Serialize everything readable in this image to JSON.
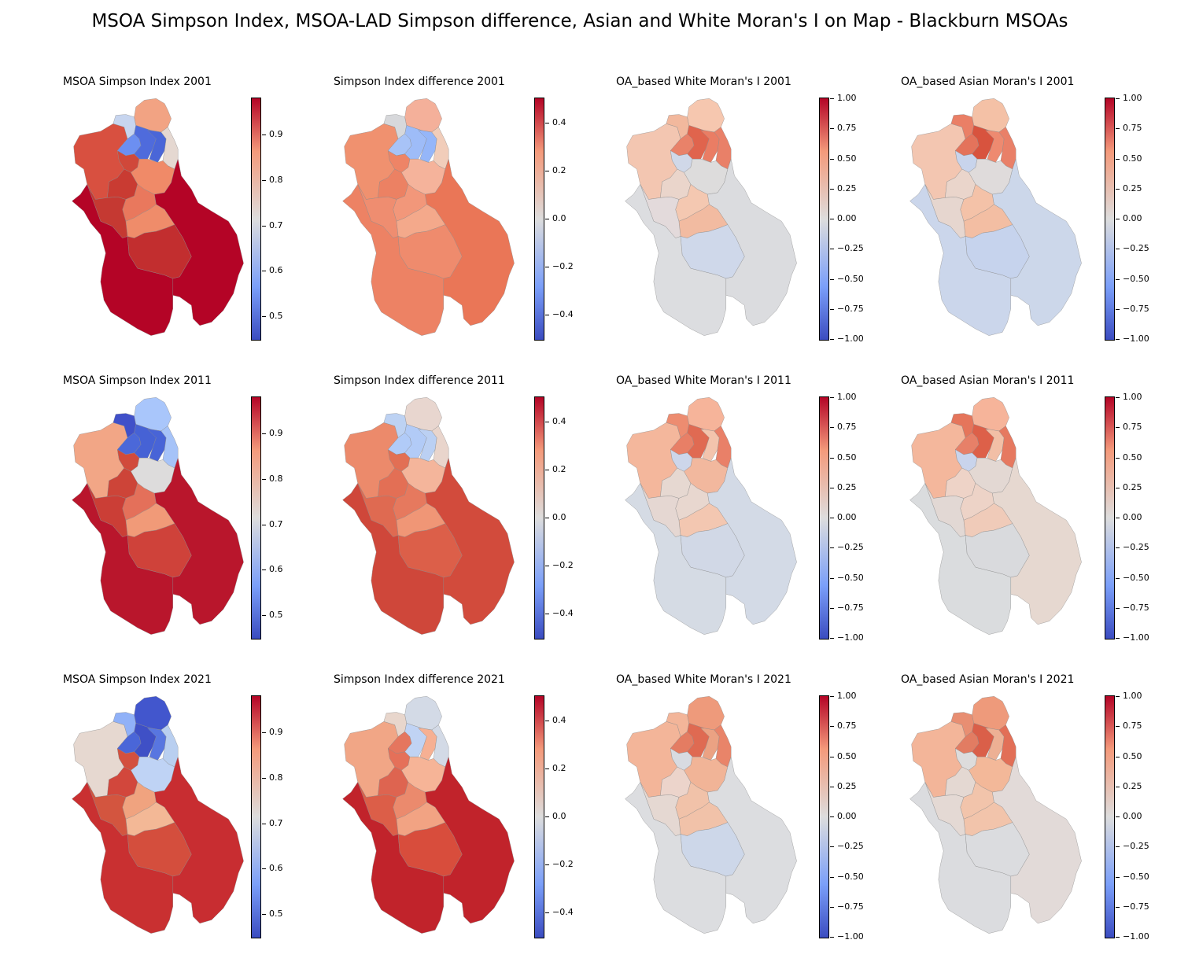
{
  "title": "MSOA Simpson Index, MSOA-LAD Simpson difference, Asian and White Moran's I on Map - Blackburn MSOAs",
  "colormap": {
    "name": "coolwarm",
    "low": "#3b4cc0",
    "mid": "#dddddd",
    "high": "#b40426"
  },
  "boundary_color": "#8a8a8a",
  "colorbars": {
    "simpson": {
      "range": [
        0.45,
        0.98
      ],
      "ticks": [
        "0.5",
        "0.6",
        "0.7",
        "0.8",
        "0.9"
      ],
      "tick_values": [
        0.5,
        0.6,
        0.7,
        0.8,
        0.9
      ]
    },
    "difference": {
      "range": [
        -0.5,
        0.5
      ],
      "ticks": [
        "−0.4",
        "−0.2",
        "0.0",
        "0.2",
        "0.4"
      ],
      "tick_values": [
        -0.4,
        -0.2,
        0.0,
        0.2,
        0.4
      ]
    },
    "moran": {
      "range": [
        -1.0,
        1.0
      ],
      "ticks": [
        "−1.00",
        "−0.75",
        "−0.50",
        "−0.25",
        "0.00",
        "0.25",
        "0.50",
        "0.75",
        "1.00"
      ],
      "tick_values": [
        -1.0,
        -0.75,
        -0.5,
        -0.25,
        0.0,
        0.25,
        0.5,
        0.75,
        1.0
      ]
    }
  },
  "panels": [
    {
      "title": "MSOA Simpson Index 2001",
      "colorbar": "simpson",
      "fills": {
        "R1": "#d85040",
        "R2": "#c7d5ef",
        "R3": "#f2a383",
        "R4": "#6c8ff1",
        "R5": "#4f6bdc",
        "R6": "#4a66d8",
        "R7": "#e5d8d1",
        "R8": "#d0483a",
        "R9": "#f08a68",
        "R10": "#c93b32",
        "R11": "#b40426",
        "R12": "#e9785d",
        "R13": "#ef8c6a",
        "R14": "#c53932",
        "R15": "#b40426",
        "R16": "#c22e2f",
        "R17": "#b40426"
      }
    },
    {
      "title": "Simpson Index difference 2001",
      "colorbar": "difference",
      "fills": {
        "R1": "#f0916f",
        "R2": "#d7d8db",
        "R3": "#f4b09a",
        "R4": "#a8c3f7",
        "R5": "#9ebcf8",
        "R6": "#95b6f9",
        "R7": "#f1cdba",
        "R8": "#ee8466",
        "R9": "#f5b39b",
        "R10": "#ec8163",
        "R11": "#ea7657",
        "R12": "#f2977a",
        "R13": "#f4a98b",
        "R14": "#ef8d70",
        "R15": "#ed8264",
        "R16": "#ef8b6d",
        "R17": "#eb7a5c"
      }
    },
    {
      "title": "OA_based White Moran's I 2001",
      "colorbar": "moran",
      "fills": {
        "R1": "#f3c6b1",
        "R2": "#f2b89d",
        "R3": "#f6c7af",
        "R4": "#e98269",
        "R5": "#e0644d",
        "R6": "#ea7d64",
        "R7": "#e98068",
        "R8": "#d0d8e8",
        "R9": "#dddcdc",
        "R10": "#ead5cb",
        "R11": "#dbdcdf",
        "R12": "#f4c8b1",
        "R13": "#f2bba1",
        "R14": "#e3dadb",
        "R15": "#dcdde0",
        "R16": "#cfd8ea",
        "R17": "#dcdde0"
      }
    },
    {
      "title": "OA_based Asian Moran's I 2001",
      "colorbar": "moran",
      "fills": {
        "R1": "#f3c6b1",
        "R2": "#ea7f66",
        "R3": "#f4c1a6",
        "R4": "#e4735b",
        "R5": "#d8533e",
        "R6": "#ee8a70",
        "R7": "#e98068",
        "R8": "#c8d4ec",
        "R9": "#dfdbdb",
        "R10": "#ead5cb",
        "R11": "#ccd7ea",
        "R12": "#f4c2a8",
        "R13": "#f3bea3",
        "R14": "#e6d6cf",
        "R15": "#cbd6eb",
        "R16": "#c6d3ed",
        "R17": "#ccd7ea"
      }
    },
    {
      "title": "MSOA Simpson Index 2011",
      "colorbar": "simpson",
      "fills": {
        "R1": "#f2a686",
        "R2": "#4050c9",
        "R3": "#a9c6fb",
        "R4": "#4b68d9",
        "R5": "#4662d5",
        "R6": "#4864d7",
        "R7": "#a6c3f8",
        "R8": "#d14a3b",
        "R9": "#dddcdc",
        "R10": "#cd4438",
        "R11": "#b9162c",
        "R12": "#e4705a",
        "R13": "#f19a78",
        "R14": "#cb3e36",
        "R15": "#b9162c",
        "R16": "#cf423a",
        "R17": "#b9162c"
      }
    },
    {
      "title": "Simpson Index difference 2011",
      "colorbar": "difference",
      "fills": {
        "R1": "#ec8a6b",
        "R2": "#bdd2f3",
        "R3": "#e8d6cf",
        "R4": "#b1cbf8",
        "R5": "#b2cbf7",
        "R6": "#bbd0f3",
        "R7": "#e9d5cc",
        "R8": "#e26f54",
        "R9": "#f4b59b",
        "R10": "#e36f55",
        "R11": "#d24b3c",
        "R12": "#e6795e",
        "R13": "#f09676",
        "R14": "#df6a51",
        "R15": "#cf473a",
        "R16": "#dc5f49",
        "R17": "#d24b3c"
      }
    },
    {
      "title": "OA_based White Moran's I 2011",
      "colorbar": "moran",
      "fills": {
        "R1": "#f4b79c",
        "R2": "#ed8c70",
        "R3": "#f6b49a",
        "R4": "#e87f66",
        "R5": "#e06a52",
        "R6": "#f3c4ad",
        "R7": "#e98068",
        "R8": "#cdd6ea",
        "R9": "#f2b89e",
        "R10": "#e6d8d1",
        "R11": "#d3dae6",
        "R12": "#e8d7cf",
        "R13": "#f3c7b1",
        "R14": "#e5d7d2",
        "R15": "#d5dbe4",
        "R16": "#d1d8e6",
        "R17": "#d3dae6"
      }
    },
    {
      "title": "OA_based Asian Moran's I 2011",
      "colorbar": "moran",
      "fills": {
        "R1": "#f4b79c",
        "R2": "#e5755b",
        "R3": "#f6b49a",
        "R4": "#e78068",
        "R5": "#dd6049",
        "R6": "#f2bfa6",
        "R7": "#e67960",
        "R8": "#c9d4ec",
        "R9": "#e3d8d3",
        "R10": "#eed3c7",
        "R11": "#e6d8d0",
        "R12": "#edd3c7",
        "R13": "#f0cbb9",
        "R14": "#e2d8d4",
        "R15": "#dadcde",
        "R16": "#d9dadd",
        "R17": "#e6d8d0"
      }
    },
    {
      "title": "MSOA Simpson Index 2021",
      "colorbar": "simpson",
      "fills": {
        "R1": "#e6d8d0",
        "R2": "#90b1f8",
        "R3": "#4256cd",
        "R4": "#4a66d8",
        "R5": "#3f50c6",
        "R6": "#5876e0",
        "R7": "#b9cff0",
        "R8": "#d3503f",
        "R9": "#bfd3f5",
        "R10": "#d2473c",
        "R11": "#c82d31",
        "R12": "#f0a37f",
        "R13": "#f3b896",
        "R14": "#d3553f",
        "R15": "#c93031",
        "R16": "#d44e3d",
        "R17": "#c93031"
      }
    },
    {
      "title": "Simpson Index difference 2021",
      "colorbar": "difference",
      "fills": {
        "R1": "#f1a686",
        "R2": "#e8d6cc",
        "R3": "#d3dae6",
        "R4": "#e5765e",
        "R5": "#c0d3f4",
        "R6": "#f6b093",
        "R7": "#d3dae6",
        "R8": "#e57059",
        "R9": "#f6b497",
        "R10": "#de6450",
        "R11": "#c1232b",
        "R12": "#eb8a6d",
        "R13": "#f2a383",
        "R14": "#dc5e48",
        "R15": "#c1232b",
        "R16": "#d84d3c",
        "R17": "#c1232b"
      }
    },
    {
      "title": "OA_based White Moran's I 2021",
      "colorbar": "moran",
      "fills": {
        "R1": "#f3b599",
        "R2": "#f3b599",
        "R3": "#ee9a7b",
        "R4": "#e47c62",
        "R5": "#df6a52",
        "R6": "#eba283",
        "R7": "#e98469",
        "R8": "#d8dbe1",
        "R9": "#f1b497",
        "R10": "#ecd4cb",
        "R11": "#dcdde0",
        "R12": "#f1c2a9",
        "R13": "#f1c2a9",
        "R14": "#e5d8d2",
        "R15": "#dcdde0",
        "R16": "#cdd7e9",
        "R17": "#dcdde0"
      }
    },
    {
      "title": "OA_based Asian Moran's I 2021",
      "colorbar": "moran",
      "fills": {
        "R1": "#f3b599",
        "R2": "#e88e72",
        "R3": "#ee9a7b",
        "R4": "#e27c62",
        "R5": "#da5f49",
        "R6": "#edb094",
        "R7": "#e26f57",
        "R8": "#dddcdc",
        "R9": "#f3b899",
        "R10": "#e4d8d2",
        "R11": "#e2dad8",
        "R12": "#f2c4ab",
        "R13": "#f2c4ab",
        "R14": "#e4d9d4",
        "R15": "#dbdcdf",
        "R16": "#dbdcdf",
        "R17": "#e2dad8"
      }
    }
  ]
}
